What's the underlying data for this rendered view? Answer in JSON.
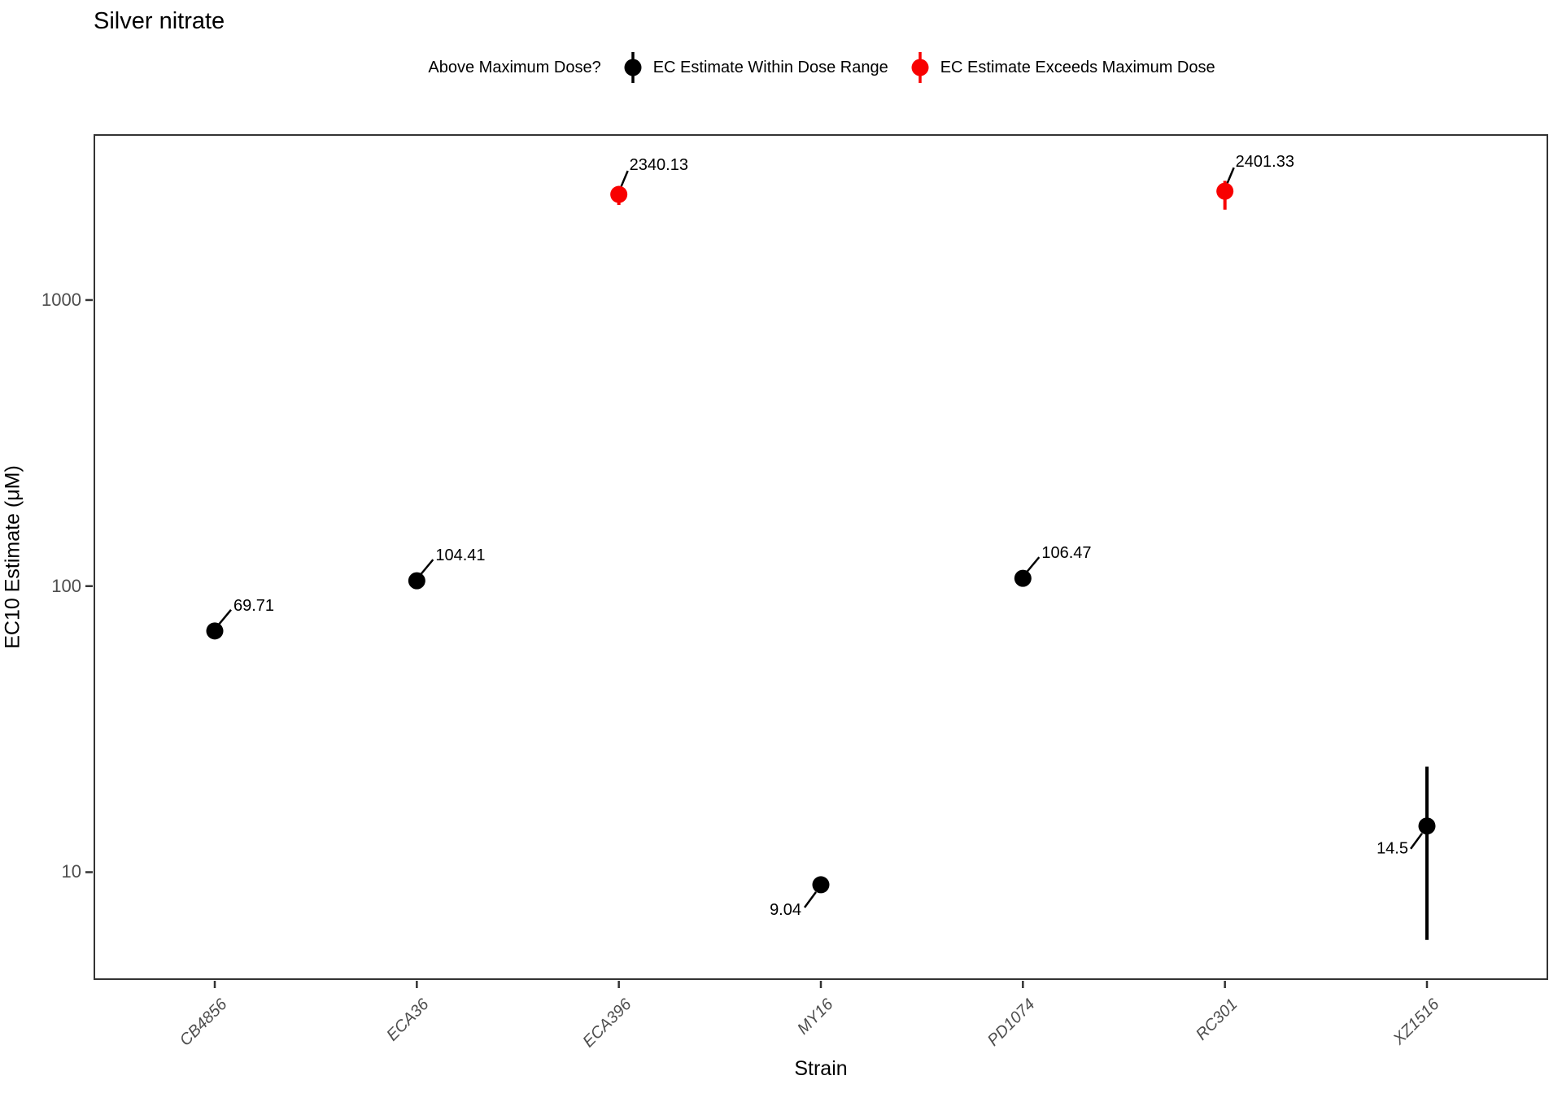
{
  "title": "Silver nitrate",
  "legend": {
    "title": "Above Maximum Dose?",
    "items": [
      {
        "label": "EC Estimate Within Dose Range",
        "color": "#000000"
      },
      {
        "label": "EC Estimate Exceeds Maximum Dose",
        "color": "#f80000"
      }
    ]
  },
  "colors": {
    "within_range": "#000000",
    "exceeds_max": "#f80000",
    "axis_text": "#4d4d4d",
    "panel_border": "#333333"
  },
  "chart_data": {
    "type": "scatter",
    "title": "Silver nitrate",
    "xlabel": "Strain",
    "ylabel": "EC10 Estimate (μM)",
    "yscale": "log10",
    "ylim": [
      4.2,
      3800
    ],
    "yticks": [
      1000,
      100,
      10
    ],
    "grid": "off",
    "legend_position": "top",
    "categories": [
      "CB4856",
      "ECA36",
      "ECA396",
      "MY16",
      "PD1074",
      "RC301",
      "XZ1516"
    ],
    "points": [
      {
        "strain": "CB4856",
        "value": 69.71,
        "label": "69.71",
        "exceeds_max_dose": false,
        "label_side": "above-right"
      },
      {
        "strain": "ECA36",
        "value": 104.41,
        "label": "104.41",
        "exceeds_max_dose": false,
        "label_side": "above-right"
      },
      {
        "strain": "ECA396",
        "value": 2340.13,
        "label": "2340.13",
        "exceeds_max_dose": true,
        "ci_low": 2150,
        "ci_high": 2430,
        "label_side": "above-right"
      },
      {
        "strain": "MY16",
        "value": 9.04,
        "label": "9.04",
        "exceeds_max_dose": false,
        "label_side": "below-left"
      },
      {
        "strain": "PD1074",
        "value": 106.47,
        "label": "106.47",
        "exceeds_max_dose": false,
        "label_side": "above-right"
      },
      {
        "strain": "RC301",
        "value": 2401.33,
        "label": "2401.33",
        "exceeds_max_dose": true,
        "ci_low": 2070,
        "ci_high": 2610,
        "label_side": "above-right"
      },
      {
        "strain": "XZ1516",
        "value": 14.5,
        "label": "14.5",
        "exceeds_max_dose": false,
        "ci_low": 5.8,
        "ci_high": 23.4,
        "label_side": "left"
      }
    ]
  }
}
